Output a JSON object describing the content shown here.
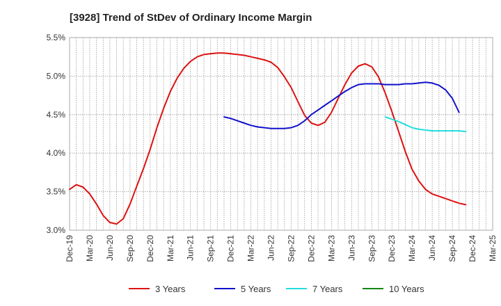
{
  "chart_data": {
    "type": "line",
    "title": "[3928]  Trend of StDev of Ordinary Income Margin",
    "xlabel": "",
    "ylabel": "",
    "x_ticks": [
      "Dec-19",
      "Mar-20",
      "Jun-20",
      "Sep-20",
      "Dec-20",
      "Mar-21",
      "Jun-21",
      "Sep-21",
      "Dec-21",
      "Mar-22",
      "Jun-22",
      "Sep-22",
      "Dec-22",
      "Mar-23",
      "Jun-23",
      "Sep-23",
      "Dec-23",
      "Mar-24",
      "Jun-24",
      "Sep-24",
      "Dec-24",
      "Mar-25"
    ],
    "y_ticks": [
      "3.0%",
      "3.5%",
      "4.0%",
      "4.5%",
      "5.0%",
      "5.5%"
    ],
    "ylim": [
      3.0,
      5.5
    ],
    "grid": true,
    "legend_position": "bottom",
    "series": [
      {
        "name": "3 Years",
        "color": "#dd1111",
        "points": [
          [
            "Dec-19",
            3.53
          ],
          [
            "Jan-20",
            3.59
          ],
          [
            "Feb-20",
            3.56
          ],
          [
            "Mar-20",
            3.47
          ],
          [
            "Apr-20",
            3.34
          ],
          [
            "May-20",
            3.19
          ],
          [
            "Jun-20",
            3.1
          ],
          [
            "Jul-20",
            3.08
          ],
          [
            "Aug-20",
            3.15
          ],
          [
            "Sep-20",
            3.34
          ],
          [
            "Oct-20",
            3.57
          ],
          [
            "Nov-20",
            3.8
          ],
          [
            "Dec-20",
            4.05
          ],
          [
            "Jan-21",
            4.33
          ],
          [
            "Feb-21",
            4.58
          ],
          [
            "Mar-21",
            4.8
          ],
          [
            "Apr-21",
            4.97
          ],
          [
            "May-21",
            5.1
          ],
          [
            "Jun-21",
            5.19
          ],
          [
            "Jul-21",
            5.25
          ],
          [
            "Aug-21",
            5.28
          ],
          [
            "Sep-21",
            5.29
          ],
          [
            "Oct-21",
            5.3
          ],
          [
            "Nov-21",
            5.3
          ],
          [
            "Dec-21",
            5.29
          ],
          [
            "Jan-22",
            5.28
          ],
          [
            "Feb-22",
            5.27
          ],
          [
            "Mar-22",
            5.25
          ],
          [
            "Apr-22",
            5.23
          ],
          [
            "May-22",
            5.21
          ],
          [
            "Jun-22",
            5.18
          ],
          [
            "Jul-22",
            5.11
          ],
          [
            "Aug-22",
            4.99
          ],
          [
            "Sep-22",
            4.85
          ],
          [
            "Oct-22",
            4.67
          ],
          [
            "Nov-22",
            4.49
          ],
          [
            "Dec-22",
            4.39
          ],
          [
            "Jan-23",
            4.36
          ],
          [
            "Feb-23",
            4.4
          ],
          [
            "Mar-23",
            4.53
          ],
          [
            "Apr-23",
            4.71
          ],
          [
            "May-23",
            4.89
          ],
          [
            "Jun-23",
            5.04
          ],
          [
            "Jul-23",
            5.13
          ],
          [
            "Aug-23",
            5.16
          ],
          [
            "Sep-23",
            5.12
          ],
          [
            "Oct-23",
            4.99
          ],
          [
            "Nov-23",
            4.78
          ],
          [
            "Dec-23",
            4.54
          ],
          [
            "Jan-24",
            4.28
          ],
          [
            "Feb-24",
            4.02
          ],
          [
            "Mar-24",
            3.79
          ],
          [
            "Apr-24",
            3.64
          ],
          [
            "May-24",
            3.53
          ],
          [
            "Jun-24",
            3.47
          ],
          [
            "Jul-24",
            3.44
          ],
          [
            "Aug-24",
            3.41
          ],
          [
            "Sep-24",
            3.38
          ],
          [
            "Oct-24",
            3.35
          ],
          [
            "Nov-24",
            3.33
          ]
        ]
      },
      {
        "name": "5 Years",
        "color": "#1111cc",
        "points": [
          [
            "Nov-21",
            4.47
          ],
          [
            "Dec-21",
            4.45
          ],
          [
            "Jan-22",
            4.42
          ],
          [
            "Feb-22",
            4.39
          ],
          [
            "Mar-22",
            4.36
          ],
          [
            "Apr-22",
            4.34
          ],
          [
            "May-22",
            4.33
          ],
          [
            "Jun-22",
            4.32
          ],
          [
            "Jul-22",
            4.32
          ],
          [
            "Aug-22",
            4.32
          ],
          [
            "Sep-22",
            4.33
          ],
          [
            "Oct-22",
            4.36
          ],
          [
            "Nov-22",
            4.42
          ],
          [
            "Dec-22",
            4.5
          ],
          [
            "Jan-23",
            4.56
          ],
          [
            "Feb-23",
            4.62
          ],
          [
            "Mar-23",
            4.68
          ],
          [
            "Apr-23",
            4.74
          ],
          [
            "May-23",
            4.8
          ],
          [
            "Jun-23",
            4.85
          ],
          [
            "Jul-23",
            4.89
          ],
          [
            "Aug-23",
            4.9
          ],
          [
            "Sep-23",
            4.9
          ],
          [
            "Oct-23",
            4.9
          ],
          [
            "Nov-23",
            4.89
          ],
          [
            "Dec-23",
            4.89
          ],
          [
            "Jan-24",
            4.89
          ],
          [
            "Feb-24",
            4.9
          ],
          [
            "Mar-24",
            4.9
          ],
          [
            "Apr-24",
            4.91
          ],
          [
            "May-24",
            4.92
          ],
          [
            "Jun-24",
            4.91
          ],
          [
            "Jul-24",
            4.88
          ],
          [
            "Aug-24",
            4.82
          ],
          [
            "Sep-24",
            4.71
          ],
          [
            "Oct-24",
            4.53
          ]
        ]
      },
      {
        "name": "7 Years",
        "color": "#22dddd",
        "points": [
          [
            "Nov-23",
            4.47
          ],
          [
            "Dec-23",
            4.44
          ],
          [
            "Jan-24",
            4.41
          ],
          [
            "Feb-24",
            4.37
          ],
          [
            "Mar-24",
            4.33
          ],
          [
            "Apr-24",
            4.31
          ],
          [
            "May-24",
            4.3
          ],
          [
            "Jun-24",
            4.29
          ],
          [
            "Jul-24",
            4.29
          ],
          [
            "Aug-24",
            4.29
          ],
          [
            "Sep-24",
            4.29
          ],
          [
            "Oct-24",
            4.29
          ],
          [
            "Nov-24",
            4.28
          ]
        ]
      },
      {
        "name": "10 Years",
        "color": "#118811",
        "points": []
      }
    ]
  }
}
